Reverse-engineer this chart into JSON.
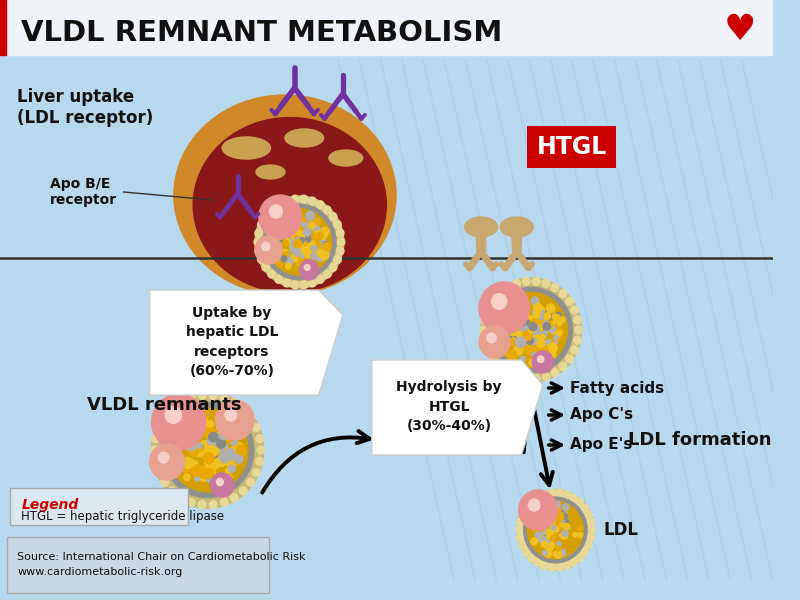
{
  "title": "VLDL REMNANT METABOLISM",
  "title_fontsize": 21,
  "bg_color": "#b8d8ee",
  "header_bg": "#f2f4f8",
  "title_color": "#111111",
  "liver_uptake_text": "Liver uptake\n(LDL receptor)",
  "apo_be_text": "Apo B/E\nreceptor",
  "htgl_label": "HTGL",
  "htgl_box_color": "#cc0000",
  "vldl_remnants_text": "VLDL remnants",
  "uptake_box_text": "Uptake by\nhepatic LDL\nreceptors\n(60%-70%)",
  "hydrolysis_box_text": "Hydrolysis by\nHTGL\n(30%-40%)",
  "ldl_formation_text": "LDL formation",
  "fatty_acids_text": "Fatty acids",
  "apo_cs_text": "Apo C's",
  "apo_es_text": "Apo E's",
  "ldl_text": "LDL",
  "legend_title": "Legend",
  "legend_text": "HTGL = hepatic triglyceride lipase",
  "source_text": "Source: International Chair on Cardiometabolic Risk\nwww.cardiometabolic-risk.org"
}
